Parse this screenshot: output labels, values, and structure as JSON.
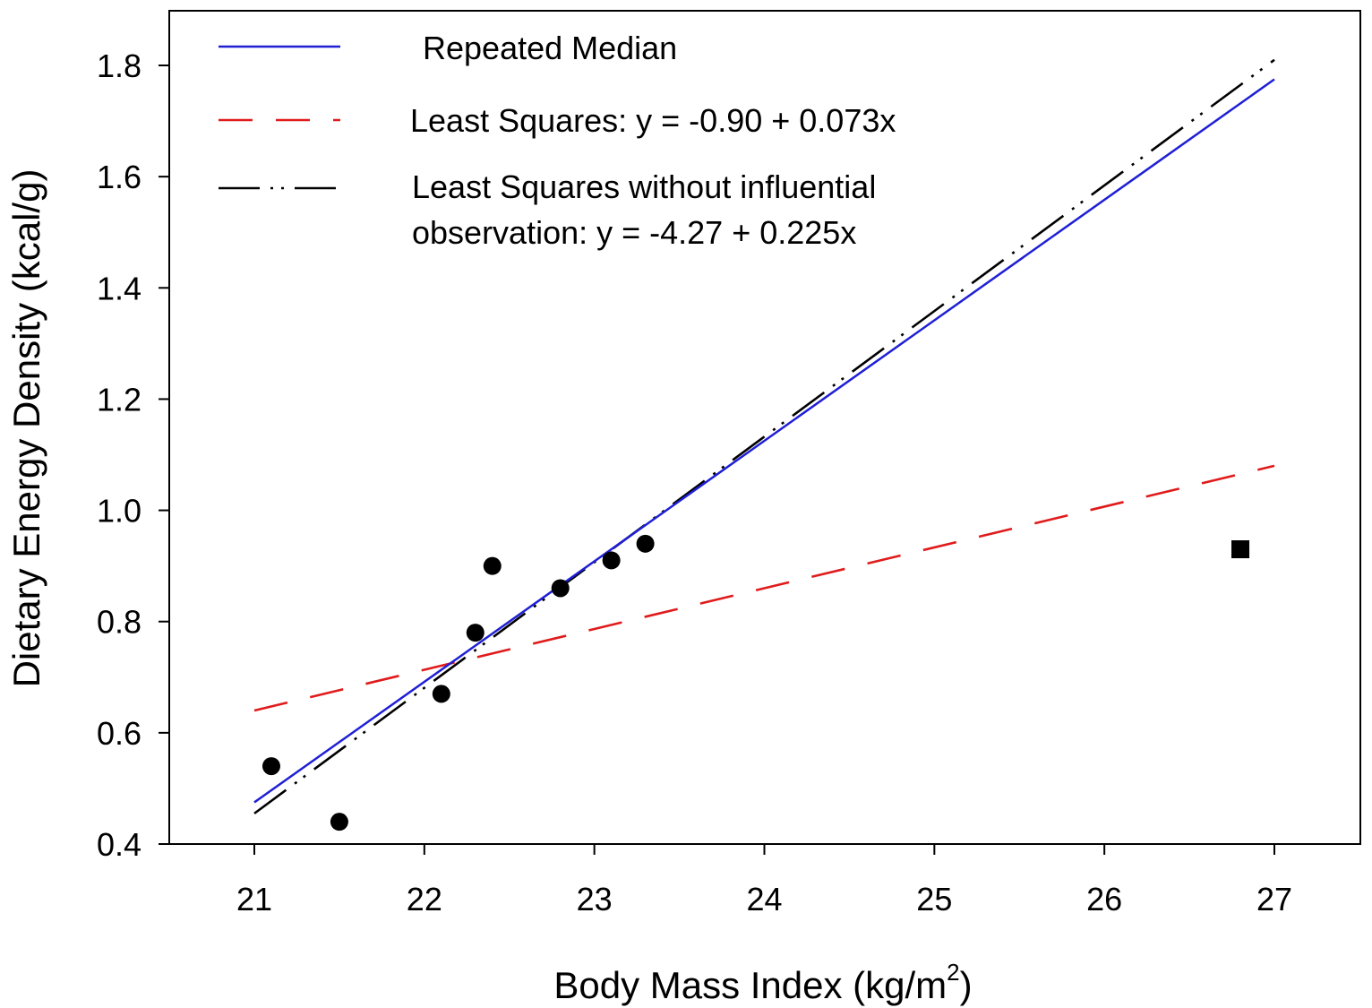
{
  "chart_data": {
    "type": "scatter",
    "xlabel": "Body Mass Index (kg/m",
    "xlabel_superscript": "2",
    "xlabel_close": ")",
    "ylabel": "Dietary Energy Density (kcal/g)",
    "xlim": [
      20.5,
      27.5
    ],
    "ylim": [
      0.4,
      1.9
    ],
    "x_ticks": [
      21,
      22,
      23,
      24,
      25,
      26,
      27
    ],
    "y_ticks": [
      0.4,
      0.6,
      0.8,
      1.0,
      1.2,
      1.4,
      1.6,
      1.8
    ],
    "y_tick_labels": [
      "0.4",
      "0.6",
      "0.8",
      "1.0",
      "1.2",
      "1.4",
      "1.6",
      "1.8"
    ],
    "points": [
      {
        "x": 21.1,
        "y": 0.54,
        "marker": "circle"
      },
      {
        "x": 21.5,
        "y": 0.44,
        "marker": "circle"
      },
      {
        "x": 22.1,
        "y": 0.67,
        "marker": "circle"
      },
      {
        "x": 22.3,
        "y": 0.78,
        "marker": "circle"
      },
      {
        "x": 22.4,
        "y": 0.9,
        "marker": "circle"
      },
      {
        "x": 22.8,
        "y": 0.86,
        "marker": "circle"
      },
      {
        "x": 23.1,
        "y": 0.91,
        "marker": "circle"
      },
      {
        "x": 23.3,
        "y": 0.94,
        "marker": "circle"
      },
      {
        "x": 26.8,
        "y": 0.93,
        "marker": "square"
      }
    ],
    "series": [
      {
        "name": "Repeated Median",
        "style": "solid",
        "color": "#1f1fd6",
        "x0": 21,
        "y0": 0.475,
        "x1": 27,
        "y1": 1.775
      },
      {
        "name": "Least Squares: y = -0.90 + 0.073x",
        "style": "dashed",
        "color": "#e01b1b",
        "x0": 21,
        "y0": 0.64,
        "x1": 27,
        "y1": 1.08
      },
      {
        "name": "Least Squares without influential observation: y = -4.27 + 0.225x",
        "style": "dash-dot-dot",
        "color": "#000000",
        "x0": 21,
        "y0": 0.455,
        "x1": 27,
        "y1": 1.81
      }
    ],
    "legend": [
      {
        "lines": [
          "Repeated Median"
        ]
      },
      {
        "lines": [
          "Least Squares: y = -0.90 + 0.073x"
        ]
      },
      {
        "lines": [
          "Least Squares without influential",
          "observation: y = -4.27 + 0.225x"
        ]
      }
    ],
    "legend_position": "top-left"
  }
}
